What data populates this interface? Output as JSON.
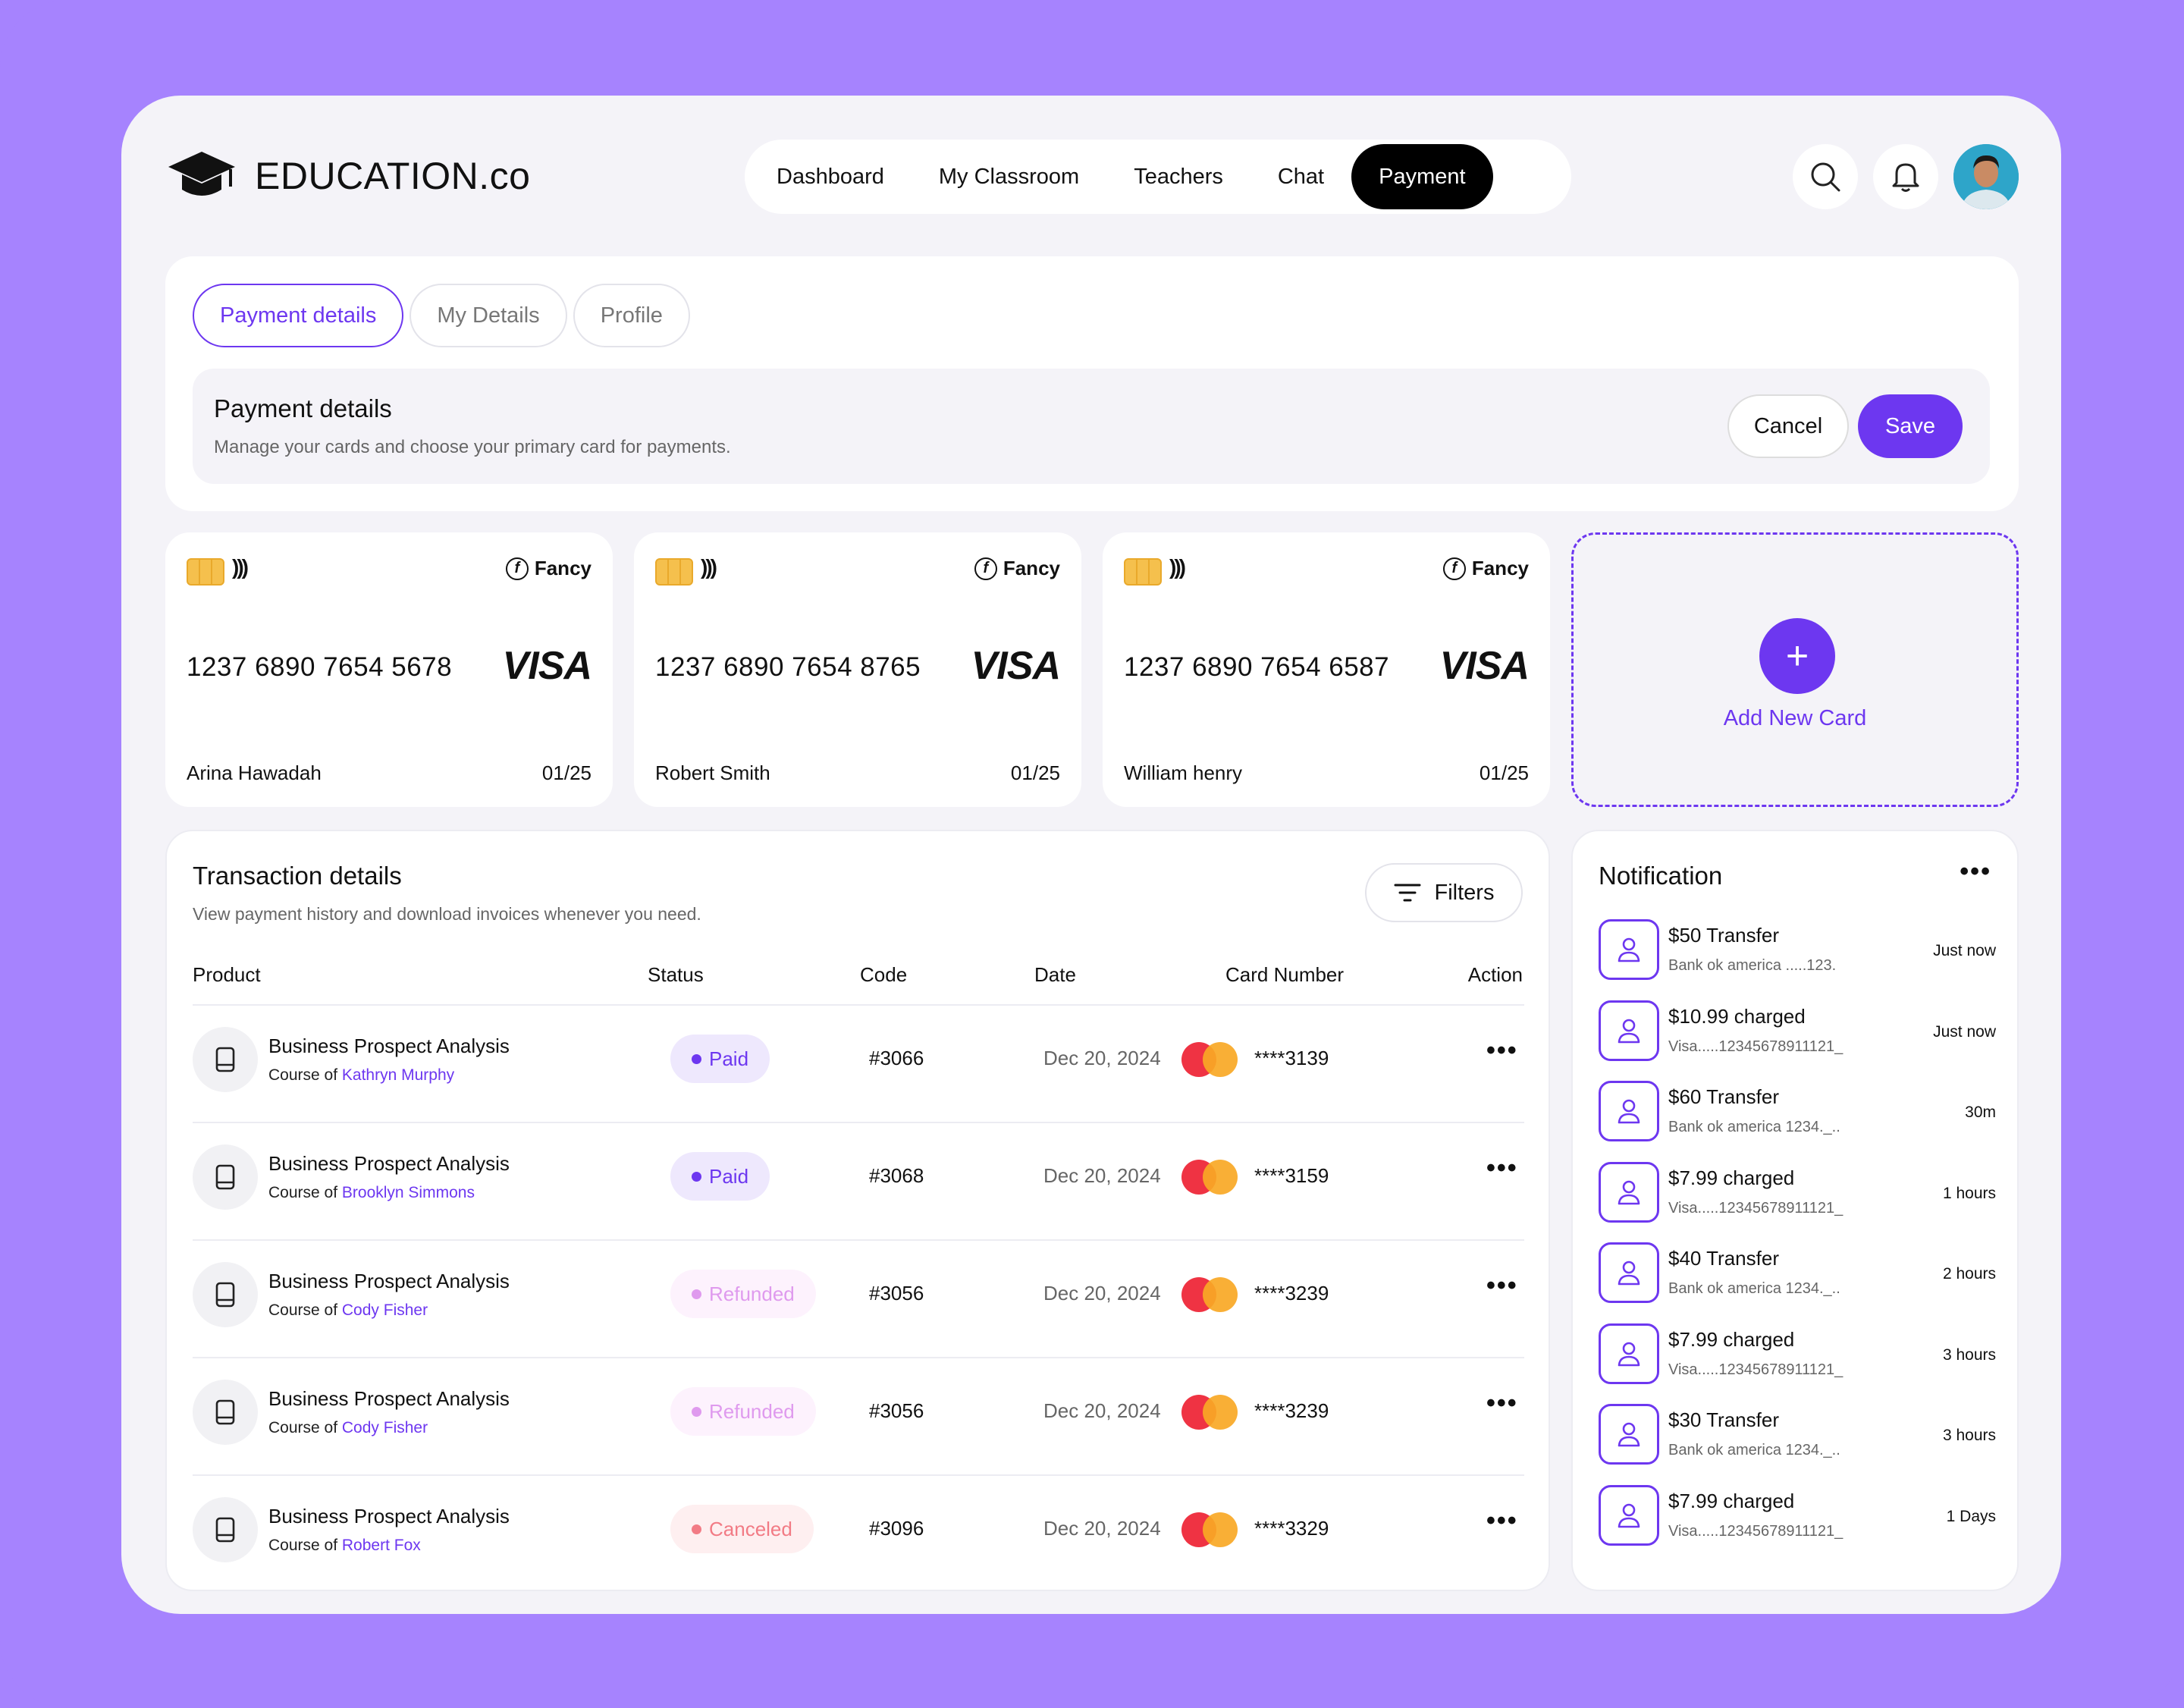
{
  "brand": {
    "name": "EDUCATION.co"
  },
  "nav": {
    "items": [
      "Dashboard",
      "My Classroom",
      "Teachers",
      "Chat",
      "Payment"
    ],
    "active": "Payment"
  },
  "tabs": {
    "items": [
      "Payment details",
      "My Details",
      "Profile"
    ],
    "active": "Payment details"
  },
  "payment_details": {
    "title": "Payment details",
    "subtitle": "Manage your cards and choose your primary card for payments.",
    "cancel_label": "Cancel",
    "save_label": "Save"
  },
  "cards": [
    {
      "brand": "Fancy",
      "number": "1237 6890 7654 5678",
      "network": "VISA",
      "holder": "Arina Hawadah",
      "expiry": "01/25"
    },
    {
      "brand": "Fancy",
      "number": "1237 6890 7654 8765",
      "network": "VISA",
      "holder": "Robert Smith",
      "expiry": "01/25"
    },
    {
      "brand": "Fancy",
      "number": "1237 6890 7654 6587",
      "network": "VISA",
      "holder": "William henry",
      "expiry": "01/25"
    }
  ],
  "add_card": {
    "label": "Add New Card",
    "plus": "+"
  },
  "transactions": {
    "title": "Transaction details",
    "subtitle": "View payment history and download invoices whenever you need.",
    "filters_label": "Filters",
    "columns": [
      "Product",
      "Status",
      "Code",
      "Date",
      "Card Number",
      "Action"
    ],
    "course_prefix": "Course of ",
    "rows": [
      {
        "product": "Business Prospect Analysis",
        "instructor": "Kathryn Murphy",
        "status": "Paid",
        "status_type": "paid",
        "code": "#3066",
        "date": "Dec 20, 2024",
        "card": "****3139",
        "action": "•••"
      },
      {
        "product": "Business Prospect Analysis",
        "instructor": "Brooklyn Simmons",
        "status": "Paid",
        "status_type": "paid",
        "code": "#3068",
        "date": "Dec 20, 2024",
        "card": "****3159",
        "action": "•••"
      },
      {
        "product": "Business Prospect Analysis",
        "instructor": "Cody Fisher",
        "status": "Refunded",
        "status_type": "refunded",
        "code": "#3056",
        "date": "Dec 20, 2024",
        "card": "****3239",
        "action": "•••"
      },
      {
        "product": "Business Prospect Analysis",
        "instructor": "Cody Fisher",
        "status": "Refunded",
        "status_type": "refunded",
        "code": "#3056",
        "date": "Dec 20, 2024",
        "card": "****3239",
        "action": "•••"
      },
      {
        "product": "Business Prospect Analysis",
        "instructor": "Robert Fox",
        "status": "Canceled",
        "status_type": "canceled",
        "code": "#3096",
        "date": "Dec 20, 2024",
        "card": "****3329",
        "action": "•••"
      }
    ]
  },
  "notifications": {
    "title": "Notification",
    "more": "•••",
    "items": [
      {
        "title": "$50 Transfer",
        "sub": "Bank ok america .....123.",
        "time": "Just now"
      },
      {
        "title": "$10.99 charged",
        "sub": "Visa.....12345678911121_",
        "time": "Just now"
      },
      {
        "title": "$60 Transfer",
        "sub": "Bank ok america 1234._..",
        "time": "30m"
      },
      {
        "title": "$7.99 charged",
        "sub": "Visa.....12345678911121_",
        "time": "1 hours"
      },
      {
        "title": "$40 Transfer",
        "sub": "Bank ok america 1234._..",
        "time": "2 hours"
      },
      {
        "title": "$7.99 charged",
        "sub": "Visa.....12345678911121_",
        "time": "3 hours"
      },
      {
        "title": "$30 Transfer",
        "sub": "Bank ok america 1234._..",
        "time": "3 hours"
      },
      {
        "title": "$7.99 charged",
        "sub": "Visa.....12345678911121_",
        "time": "1 Days"
      }
    ]
  },
  "colors": {
    "accent": "#6d37f0",
    "background": "#a683fe",
    "surface": "#f4f3f8"
  },
  "icons": {
    "logo": "graduation-cap-icon",
    "search": "search-icon",
    "bell": "bell-icon",
    "filters": "filter-icon",
    "product": "book-icon",
    "notification": "user-icon"
  }
}
